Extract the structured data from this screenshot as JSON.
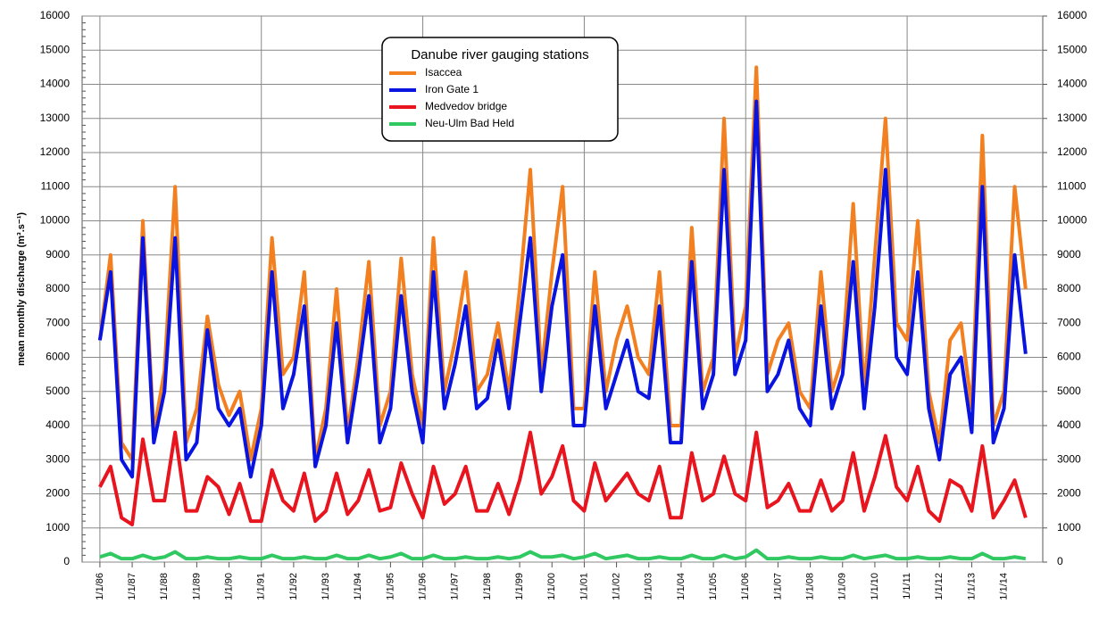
{
  "chart_data": {
    "type": "line",
    "legend_title": "Danube river gauging stations",
    "ylabel": "mean monthly discharge (m³.s⁻¹)",
    "grid": true,
    "legend_position": "top center",
    "xlim": [
      1985.45,
      2015.2
    ],
    "xticks": [
      {
        "value": 1986,
        "label": "1/1/86"
      },
      {
        "value": 1987,
        "label": "1/1/87"
      },
      {
        "value": 1988,
        "label": "1/1/88"
      },
      {
        "value": 1989,
        "label": "1/1/89"
      },
      {
        "value": 1990,
        "label": "1/1/90"
      },
      {
        "value": 1991,
        "label": "1/1/91"
      },
      {
        "value": 1992,
        "label": "1/1/92"
      },
      {
        "value": 1993,
        "label": "1/1/93"
      },
      {
        "value": 1994,
        "label": "1/1/94"
      },
      {
        "value": 1995,
        "label": "1/1/95"
      },
      {
        "value": 1996,
        "label": "1/1/96"
      },
      {
        "value": 1997,
        "label": "1/1/97"
      },
      {
        "value": 1998,
        "label": "1/1/98"
      },
      {
        "value": 1999,
        "label": "1/1/99"
      },
      {
        "value": 2000,
        "label": "1/1/00"
      },
      {
        "value": 2001,
        "label": "1/1/01"
      },
      {
        "value": 2002,
        "label": "1/1/02"
      },
      {
        "value": 2003,
        "label": "1/1/03"
      },
      {
        "value": 2004,
        "label": "1/1/04"
      },
      {
        "value": 2005,
        "label": "1/1/05"
      },
      {
        "value": 2006,
        "label": "1/1/06"
      },
      {
        "value": 2007,
        "label": "1/1/07"
      },
      {
        "value": 2008,
        "label": "1/1/08"
      },
      {
        "value": 2009,
        "label": "1/1/09"
      },
      {
        "value": 2010,
        "label": "1/1/10"
      },
      {
        "value": 2011,
        "label": "1/1/11"
      },
      {
        "value": 2012,
        "label": "1/1/12"
      },
      {
        "value": 2013,
        "label": "1/1/13"
      },
      {
        "value": 2014,
        "label": "1/1/14"
      }
    ],
    "ylim": [
      0,
      16000
    ],
    "yticks": [
      0,
      1000,
      2000,
      3000,
      4000,
      5000,
      6000,
      7000,
      8000,
      9000,
      10000,
      11000,
      12000,
      13000,
      14000,
      15000,
      16000
    ],
    "y2lim": [
      0,
      16000
    ],
    "y2ticks": [
      0,
      1000,
      2000,
      3000,
      4000,
      5000,
      6000,
      7000,
      8000,
      9000,
      10000,
      11000,
      12000,
      13000,
      14000,
      15000,
      16000
    ],
    "x": [
      1986,
      1986.33,
      1986.67,
      1987,
      1987.33,
      1987.67,
      1988,
      1988.33,
      1988.67,
      1989,
      1989.33,
      1989.67,
      1990,
      1990.33,
      1990.67,
      1991,
      1991.33,
      1991.67,
      1992,
      1992.33,
      1992.67,
      1993,
      1993.33,
      1993.67,
      1994,
      1994.33,
      1994.67,
      1995,
      1995.33,
      1995.67,
      1996,
      1996.33,
      1996.67,
      1997,
      1997.33,
      1997.67,
      1998,
      1998.33,
      1998.67,
      1999,
      1999.33,
      1999.67,
      2000,
      2000.33,
      2000.67,
      2001,
      2001.33,
      2001.67,
      2002,
      2002.33,
      2002.67,
      2003,
      2003.33,
      2003.67,
      2004,
      2004.33,
      2004.67,
      2005,
      2005.33,
      2005.67,
      2006,
      2006.33,
      2006.67,
      2007,
      2007.33,
      2007.67,
      2008,
      2008.33,
      2008.67,
      2009,
      2009.33,
      2009.67,
      2010,
      2010.33,
      2010.67,
      2011,
      2011.33,
      2011.67,
      2012,
      2012.33,
      2012.67,
      2013,
      2013.33,
      2013.67,
      2014,
      2014.33,
      2014.67
    ],
    "series": [
      {
        "name": "Isaccea",
        "color": "#f28020",
        "width": 4,
        "values": [
          6500,
          9000,
          3500,
          3000,
          10000,
          3800,
          5600,
          11000,
          3500,
          4500,
          7200,
          5200,
          4300,
          5000,
          3000,
          4500,
          9500,
          5500,
          6000,
          8500,
          3000,
          4500,
          8000,
          3800,
          6000,
          8800,
          4000,
          5000,
          8900,
          5500,
          4000,
          9500,
          5000,
          6500,
          8500,
          5000,
          5500,
          7000,
          5000,
          8000,
          11500,
          5500,
          8500,
          11000,
          4500,
          4500,
          8500,
          5000,
          6500,
          7500,
          6000,
          5500,
          8500,
          4000,
          4000,
          9800,
          5000,
          6000,
          13000,
          6000,
          7500,
          14500,
          5500,
          6500,
          7000,
          5000,
          4500,
          8500,
          5000,
          6000,
          10500,
          5000,
          9000,
          13000,
          7000,
          6500,
          10000,
          5000,
          3500,
          6500,
          7000,
          4500,
          12500,
          4000,
          5000,
          11000,
          8000
        ]
      },
      {
        "name": "Iron Gate 1",
        "color": "#0a14e0",
        "width": 4,
        "values": [
          6500,
          8500,
          3000,
          2500,
          9500,
          3500,
          5000,
          9500,
          3000,
          3500,
          6800,
          4500,
          4000,
          4500,
          2500,
          4000,
          8500,
          4500,
          5500,
          7500,
          2800,
          4000,
          7000,
          3500,
          5500,
          7800,
          3500,
          4500,
          7800,
          5000,
          3500,
          8500,
          4500,
          5800,
          7500,
          4500,
          4800,
          6500,
          4500,
          7000,
          9500,
          5000,
          7500,
          9000,
          4000,
          4000,
          7500,
          4500,
          5500,
          6500,
          5000,
          4800,
          7500,
          3500,
          3500,
          8800,
          4500,
          5500,
          11500,
          5500,
          6500,
          13500,
          5000,
          5500,
          6500,
          4500,
          4000,
          7500,
          4500,
          5500,
          8800,
          4500,
          7500,
          11500,
          6000,
          5500,
          8500,
          4500,
          3000,
          5500,
          6000,
          3800,
          11000,
          3500,
          4500,
          9000,
          6100
        ]
      },
      {
        "name": "Medvedov bridge",
        "color": "#e8141e",
        "width": 4,
        "values": [
          2200,
          2800,
          1300,
          1100,
          3600,
          1800,
          1800,
          3800,
          1500,
          1500,
          2500,
          2200,
          1400,
          2300,
          1200,
          1200,
          2700,
          1800,
          1500,
          2600,
          1200,
          1500,
          2600,
          1400,
          1800,
          2700,
          1500,
          1600,
          2900,
          2000,
          1300,
          2800,
          1700,
          2000,
          2800,
          1500,
          1500,
          2300,
          1400,
          2400,
          3800,
          2000,
          2500,
          3400,
          1800,
          1500,
          2900,
          1800,
          2200,
          2600,
          2000,
          1800,
          2800,
          1300,
          1300,
          3200,
          1800,
          2000,
          3100,
          2000,
          1800,
          3800,
          1600,
          1800,
          2300,
          1500,
          1500,
          2400,
          1500,
          1800,
          3200,
          1500,
          2500,
          3700,
          2200,
          1800,
          2800,
          1500,
          1200,
          2400,
          2200,
          1500,
          3400,
          1300,
          1800,
          2400,
          1300
        ]
      },
      {
        "name": "Neu-Ulm Bad Held",
        "color": "#30c860",
        "width": 4,
        "values": [
          150,
          250,
          100,
          100,
          200,
          100,
          150,
          300,
          100,
          100,
          150,
          100,
          100,
          150,
          100,
          100,
          200,
          100,
          100,
          150,
          100,
          100,
          200,
          100,
          100,
          200,
          100,
          150,
          250,
          100,
          100,
          200,
          100,
          100,
          150,
          100,
          100,
          150,
          100,
          150,
          300,
          150,
          150,
          200,
          100,
          150,
          250,
          100,
          150,
          200,
          100,
          100,
          150,
          100,
          100,
          200,
          100,
          100,
          200,
          100,
          150,
          350,
          100,
          100,
          150,
          100,
          100,
          150,
          100,
          100,
          200,
          100,
          150,
          200,
          100,
          100,
          150,
          100,
          100,
          150,
          100,
          100,
          250,
          100,
          100,
          150,
          100
        ]
      }
    ]
  }
}
